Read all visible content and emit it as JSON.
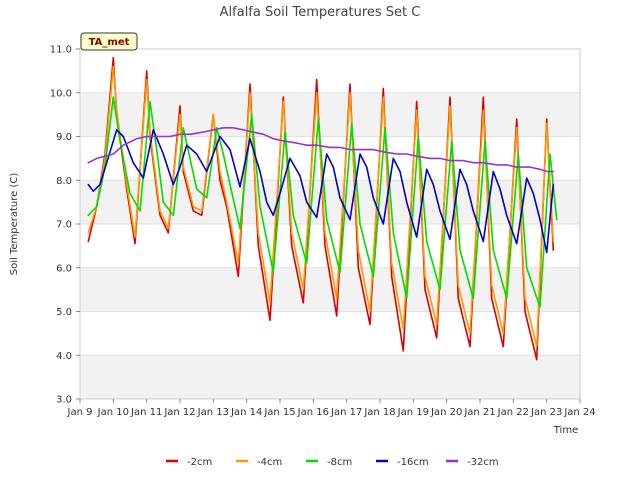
{
  "chart_data": {
    "type": "line",
    "title": "Alfalfa Soil Temperatures Set C",
    "xlabel": "Time",
    "ylabel": "Soil Temperature (C)",
    "tag": "TA_met",
    "xlim": [
      9,
      24
    ],
    "ylim": [
      3.0,
      11.0
    ],
    "grid": "horizontal bands",
    "legend_position": "bottom",
    "x_ticks": [
      {
        "value": 9,
        "label": "Jan 9"
      },
      {
        "value": 10,
        "label": "Jan 10"
      },
      {
        "value": 11,
        "label": "Jan 11"
      },
      {
        "value": 12,
        "label": "Jan 12"
      },
      {
        "value": 13,
        "label": "Jan 13"
      },
      {
        "value": 14,
        "label": "Jan 14"
      },
      {
        "value": 15,
        "label": "Jan 15"
      },
      {
        "value": 16,
        "label": "Jan 16"
      },
      {
        "value": 17,
        "label": "Jan 17"
      },
      {
        "value": 18,
        "label": "Jan 18"
      },
      {
        "value": 19,
        "label": "Jan 19"
      },
      {
        "value": 20,
        "label": "Jan 20"
      },
      {
        "value": 21,
        "label": "Jan 21"
      },
      {
        "value": 22,
        "label": "Jan 22"
      },
      {
        "value": 23,
        "label": "Jan 23"
      },
      {
        "value": 24,
        "label": "Jan 24"
      }
    ],
    "y_ticks": [
      {
        "value": 3.0,
        "label": "3.0"
      },
      {
        "value": 4.0,
        "label": "4.0"
      },
      {
        "value": 5.0,
        "label": "5.0"
      },
      {
        "value": 6.0,
        "label": "6.0"
      },
      {
        "value": 7.0,
        "label": "7.0"
      },
      {
        "value": 8.0,
        "label": "8.0"
      },
      {
        "value": 9.0,
        "label": "9.0"
      },
      {
        "value": 10.0,
        "label": "10.0"
      },
      {
        "value": 11.0,
        "label": "11.0"
      }
    ],
    "series": [
      {
        "name": "-2cm",
        "color": "#dd0000",
        "x": [
          9.25,
          9.5,
          9.75,
          10.0,
          10.1,
          10.4,
          10.65,
          11.0,
          11.1,
          11.4,
          11.65,
          12.0,
          12.1,
          12.4,
          12.65,
          13.0,
          13.2,
          13.4,
          13.75,
          14.1,
          14.35,
          14.7,
          15.1,
          15.35,
          15.7,
          16.1,
          16.35,
          16.7,
          17.1,
          17.35,
          17.7,
          18.1,
          18.35,
          18.7,
          19.1,
          19.35,
          19.7,
          20.1,
          20.35,
          20.7,
          21.1,
          21.35,
          21.7,
          22.1,
          22.35,
          22.7,
          23.0,
          23.2
        ],
        "y": [
          6.6,
          7.4,
          8.6,
          10.8,
          9.5,
          7.8,
          6.55,
          10.5,
          9.0,
          7.2,
          6.8,
          9.7,
          8.2,
          7.3,
          7.2,
          9.5,
          8.0,
          7.4,
          5.8,
          10.2,
          6.5,
          4.8,
          9.9,
          6.5,
          5.2,
          10.3,
          6.5,
          4.9,
          10.2,
          6.0,
          4.7,
          10.1,
          5.8,
          4.1,
          9.8,
          5.5,
          4.4,
          9.9,
          5.3,
          4.2,
          9.9,
          5.3,
          4.2,
          9.4,
          5.0,
          3.9,
          9.4,
          6.4
        ]
      },
      {
        "name": "-4cm",
        "color": "#ff9900",
        "x": [
          9.25,
          9.5,
          9.75,
          10.0,
          10.1,
          10.4,
          10.65,
          11.0,
          11.1,
          11.4,
          11.65,
          12.0,
          12.1,
          12.4,
          12.65,
          13.0,
          13.2,
          13.4,
          13.75,
          14.1,
          14.35,
          14.7,
          15.1,
          15.35,
          15.7,
          16.1,
          16.35,
          16.7,
          17.1,
          17.35,
          17.7,
          18.1,
          18.35,
          18.7,
          19.1,
          19.35,
          19.7,
          20.1,
          20.35,
          20.7,
          21.1,
          21.35,
          21.7,
          22.1,
          22.35,
          22.7,
          23.0,
          23.2
        ],
        "y": [
          6.8,
          7.4,
          8.5,
          10.6,
          9.6,
          7.9,
          6.7,
          10.3,
          9.1,
          7.3,
          6.9,
          9.5,
          8.3,
          7.4,
          7.3,
          9.5,
          8.2,
          7.5,
          6.1,
          10.0,
          6.8,
          5.2,
          9.8,
          6.8,
          5.5,
          10.0,
          6.8,
          5.3,
          10.0,
          6.4,
          5.0,
          9.9,
          6.1,
          4.6,
          9.6,
          5.8,
          4.7,
          9.7,
          5.6,
          4.5,
          9.6,
          5.6,
          4.5,
          9.2,
          5.3,
          4.2,
          9.3,
          6.6
        ]
      },
      {
        "name": "-8cm",
        "color": "#00dd00",
        "x": [
          9.25,
          9.5,
          9.75,
          10.0,
          10.2,
          10.5,
          10.8,
          11.1,
          11.3,
          11.5,
          11.8,
          12.1,
          12.3,
          12.5,
          12.8,
          13.1,
          13.3,
          13.5,
          13.8,
          14.15,
          14.4,
          14.8,
          15.15,
          15.4,
          15.8,
          16.15,
          16.4,
          16.8,
          17.15,
          17.4,
          17.8,
          18.15,
          18.4,
          18.8,
          19.15,
          19.4,
          19.8,
          20.15,
          20.4,
          20.8,
          21.15,
          21.4,
          21.8,
          22.15,
          22.4,
          22.8,
          23.1,
          23.3
        ],
        "y": [
          7.2,
          7.4,
          8.3,
          9.9,
          8.9,
          7.7,
          7.3,
          9.8,
          8.7,
          7.5,
          7.2,
          9.2,
          8.5,
          7.8,
          7.6,
          9.2,
          8.6,
          7.9,
          6.9,
          9.5,
          7.4,
          5.9,
          9.1,
          7.2,
          6.1,
          9.4,
          7.1,
          5.9,
          9.3,
          7.0,
          5.8,
          9.2,
          6.8,
          5.3,
          9.0,
          6.6,
          5.5,
          8.9,
          6.4,
          5.3,
          8.9,
          6.4,
          5.3,
          8.6,
          6.0,
          5.1,
          8.6,
          7.1
        ]
      },
      {
        "name": "-16cm",
        "color": "#0000cc",
        "x": [
          9.25,
          9.4,
          9.6,
          9.8,
          10.1,
          10.3,
          10.6,
          10.9,
          11.2,
          11.5,
          11.8,
          12.0,
          12.2,
          12.5,
          12.8,
          13.0,
          13.2,
          13.5,
          13.8,
          14.1,
          14.4,
          14.6,
          14.8,
          15.0,
          15.3,
          15.6,
          15.8,
          16.1,
          16.4,
          16.6,
          16.8,
          17.1,
          17.4,
          17.6,
          17.8,
          18.1,
          18.4,
          18.6,
          18.8,
          19.1,
          19.4,
          19.6,
          19.8,
          20.1,
          20.4,
          20.6,
          20.8,
          21.1,
          21.4,
          21.6,
          21.8,
          22.1,
          22.4,
          22.6,
          22.8,
          23.0,
          23.2
        ],
        "y": [
          7.9,
          7.75,
          7.9,
          8.4,
          9.15,
          9.0,
          8.4,
          8.05,
          9.15,
          8.6,
          7.9,
          8.3,
          8.8,
          8.6,
          8.2,
          8.6,
          9.0,
          8.7,
          7.85,
          8.95,
          8.2,
          7.5,
          7.2,
          7.7,
          8.5,
          8.1,
          7.5,
          7.15,
          8.6,
          8.3,
          7.6,
          7.1,
          8.6,
          8.3,
          7.6,
          7.0,
          8.5,
          8.2,
          7.5,
          6.7,
          8.25,
          7.9,
          7.3,
          6.65,
          8.25,
          7.9,
          7.3,
          6.6,
          8.2,
          7.8,
          7.2,
          6.55,
          8.05,
          7.7,
          7.1,
          6.35,
          7.9
        ]
      },
      {
        "name": "-32cm",
        "color": "#9933cc",
        "x": [
          9.25,
          9.5,
          9.75,
          10.0,
          10.3,
          10.7,
          11.0,
          11.3,
          11.7,
          12.0,
          12.3,
          12.7,
          13.0,
          13.3,
          13.6,
          13.9,
          14.2,
          14.5,
          14.8,
          15.1,
          15.5,
          15.8,
          16.1,
          16.5,
          16.8,
          17.1,
          17.5,
          17.8,
          18.1,
          18.5,
          18.8,
          19.1,
          19.5,
          19.8,
          20.1,
          20.5,
          20.8,
          21.1,
          21.5,
          21.8,
          22.1,
          22.5,
          22.8,
          23.0,
          23.2
        ],
        "y": [
          8.4,
          8.5,
          8.55,
          8.6,
          8.8,
          8.95,
          9.0,
          9.0,
          9.0,
          9.05,
          9.05,
          9.1,
          9.15,
          9.2,
          9.2,
          9.15,
          9.1,
          9.05,
          8.95,
          8.9,
          8.85,
          8.8,
          8.8,
          8.75,
          8.75,
          8.7,
          8.7,
          8.7,
          8.65,
          8.6,
          8.6,
          8.55,
          8.5,
          8.5,
          8.45,
          8.45,
          8.4,
          8.4,
          8.35,
          8.35,
          8.3,
          8.3,
          8.25,
          8.2,
          8.2
        ]
      }
    ]
  }
}
